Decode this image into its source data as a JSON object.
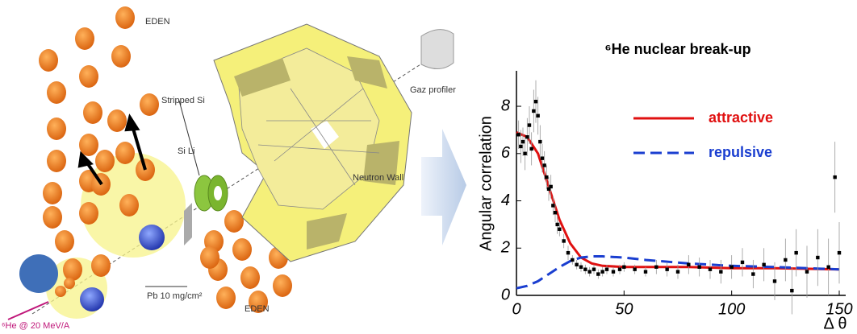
{
  "diagram": {
    "labels": [
      "EDEN",
      "Stripped Si",
      "Si Li",
      "Neutron Wall",
      "Gaz profiler",
      "Pb 10 mg/cm²",
      "EDEN",
      "⁶He @ 20 MeV/A"
    ]
  },
  "chart_data": {
    "type": "line",
    "title": "⁶He nuclear break-up",
    "y_label": "Angular correlation",
    "x_label": "Δ θ",
    "xlim": [
      0,
      153
    ],
    "ylim": [
      0,
      9.5
    ],
    "xticks": [
      0,
      50,
      100,
      150
    ],
    "yticks": [
      0,
      2,
      4,
      6,
      8
    ],
    "legend": "upper right",
    "series": [
      {
        "name": "attractive",
        "type": "line",
        "color": "#e01010",
        "dash": false,
        "x": [
          0,
          5,
          10,
          15,
          20,
          25,
          30,
          35,
          40,
          50,
          60,
          80,
          100,
          120,
          150
        ],
        "values": [
          6.9,
          6.7,
          6.0,
          4.6,
          3.2,
          2.2,
          1.6,
          1.35,
          1.25,
          1.2,
          1.2,
          1.2,
          1.15,
          1.15,
          1.1
        ]
      },
      {
        "name": "repulsive",
        "type": "line",
        "color": "#1a3ed0",
        "dash": true,
        "x": [
          0,
          5,
          10,
          15,
          20,
          25,
          30,
          35,
          40,
          50,
          60,
          80,
          100,
          120,
          150
        ],
        "values": [
          0.3,
          0.4,
          0.6,
          0.9,
          1.2,
          1.45,
          1.6,
          1.65,
          1.65,
          1.6,
          1.5,
          1.35,
          1.25,
          1.2,
          1.1
        ]
      },
      {
        "type": "scatter",
        "color": "#000000",
        "x": [
          1,
          2,
          3,
          4,
          5,
          6,
          7,
          8,
          9,
          10,
          11,
          12,
          13,
          14,
          15,
          16,
          17,
          18,
          19,
          20,
          22,
          24,
          26,
          28,
          30,
          32,
          34,
          36,
          38,
          40,
          42,
          45,
          48,
          50,
          55,
          60,
          65,
          70,
          75,
          80,
          85,
          90,
          95,
          100,
          105,
          110,
          115,
          120,
          125,
          128,
          130,
          135,
          140,
          145,
          148,
          150
        ],
        "values": [
          6.8,
          6.3,
          6.5,
          6.0,
          6.7,
          7.2,
          6.2,
          7.8,
          8.2,
          7.6,
          6.5,
          5.8,
          5.5,
          5.0,
          4.5,
          4.6,
          3.8,
          3.5,
          3.0,
          2.8,
          2.3,
          1.8,
          1.5,
          1.3,
          1.2,
          1.1,
          1.0,
          1.1,
          0.9,
          1.0,
          1.1,
          1.0,
          1.1,
          1.2,
          1.1,
          1.0,
          1.2,
          1.1,
          1.0,
          1.3,
          1.2,
          1.1,
          1.0,
          1.2,
          1.4,
          0.9,
          1.3,
          0.6,
          1.5,
          0.2,
          1.8,
          1.0,
          1.6,
          1.2,
          5.0,
          1.8
        ],
        "errors": [
          0.6,
          0.7,
          0.6,
          0.7,
          0.8,
          0.8,
          0.7,
          0.9,
          0.9,
          0.8,
          0.7,
          0.6,
          0.6,
          0.5,
          0.5,
          0.5,
          0.4,
          0.4,
          0.4,
          0.3,
          0.3,
          0.3,
          0.2,
          0.2,
          0.2,
          0.2,
          0.2,
          0.2,
          0.2,
          0.2,
          0.2,
          0.2,
          0.2,
          0.2,
          0.2,
          0.2,
          0.3,
          0.3,
          0.3,
          0.4,
          0.4,
          0.4,
          0.5,
          0.5,
          0.6,
          0.6,
          0.7,
          0.8,
          0.9,
          1.0,
          1.0,
          1.1,
          1.2,
          1.2,
          1.5,
          1.3
        ]
      }
    ]
  }
}
